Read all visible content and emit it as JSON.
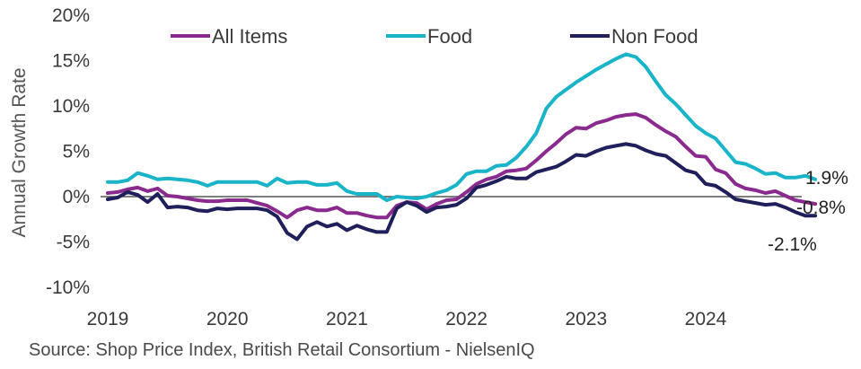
{
  "chart_data": {
    "type": "line",
    "ylabel": "Annual Growth Rate",
    "ylim": [
      -10,
      20
    ],
    "xlim": [
      2019.0,
      2024.75
    ],
    "y_ticks": [
      "-10%",
      "-5%",
      "0%",
      "5%",
      "10%",
      "15%",
      "20%"
    ],
    "y_tick_values": [
      -10,
      -5,
      0,
      5,
      10,
      15,
      20
    ],
    "x_ticks": [
      "2019",
      "2020",
      "2021",
      "2022",
      "2023",
      "2024"
    ],
    "x_tick_values": [
      2019,
      2020,
      2021,
      2022,
      2023,
      2024
    ],
    "legend_position": "top",
    "zero_line": true,
    "source": "Source: Shop Price Index, British Retail Consortium - NielsenIQ",
    "end_labels": [
      {
        "series": "Food",
        "text": "1.9%",
        "value": 1.9
      },
      {
        "series": "All Items",
        "text": "-0.8%",
        "value": -0.8
      },
      {
        "series": "Non Food",
        "text": "-2.1%",
        "value": -2.1
      }
    ],
    "series": [
      {
        "name": "All Items",
        "color": "#8b2a8e",
        "x_start": 2019.0,
        "x_step": 0.0833333,
        "values": [
          0.4,
          0.5,
          0.8,
          1.0,
          0.6,
          0.9,
          0.1,
          0.0,
          -0.2,
          -0.4,
          -0.5,
          -0.5,
          -0.4,
          -0.4,
          -0.4,
          -0.7,
          -1.0,
          -1.6,
          -2.3,
          -1.5,
          -1.2,
          -1.5,
          -1.5,
          -1.2,
          -1.8,
          -1.8,
          -2.1,
          -2.3,
          -2.3,
          -1.0,
          -0.6,
          -0.7,
          -1.4,
          -0.8,
          -0.4,
          -0.3,
          0.5,
          1.4,
          1.9,
          2.2,
          2.8,
          2.9,
          3.1,
          4.0,
          5.0,
          5.9,
          6.9,
          7.6,
          7.5,
          8.1,
          8.4,
          8.8,
          9.0,
          9.1,
          8.7,
          7.9,
          7.2,
          6.6,
          5.5,
          4.5,
          4.4,
          3.0,
          2.6,
          1.4,
          0.9,
          0.7,
          0.4,
          0.6,
          0.1,
          -0.4,
          -0.6,
          -0.8
        ]
      },
      {
        "name": "Food",
        "color": "#19b4c8",
        "x_start": 2019.0,
        "x_step": 0.0833333,
        "values": [
          1.6,
          1.6,
          1.8,
          2.6,
          2.3,
          1.9,
          2.0,
          1.9,
          1.8,
          1.6,
          1.2,
          1.6,
          1.6,
          1.6,
          1.6,
          1.6,
          1.2,
          2.0,
          1.5,
          1.6,
          1.6,
          1.3,
          1.3,
          1.5,
          0.6,
          0.3,
          0.3,
          0.3,
          -0.4,
          0.0,
          -0.1,
          -0.2,
          0.0,
          0.4,
          0.7,
          1.3,
          2.5,
          2.8,
          2.8,
          3.4,
          3.5,
          4.3,
          5.5,
          7.0,
          9.7,
          11.0,
          11.8,
          12.6,
          13.3,
          14.0,
          14.6,
          15.2,
          15.7,
          15.4,
          14.3,
          12.7,
          11.2,
          10.2,
          9.0,
          7.8,
          7.0,
          6.4,
          5.1,
          3.8,
          3.6,
          3.1,
          2.5,
          2.6,
          2.1,
          2.1,
          2.3,
          1.9
        ]
      },
      {
        "name": "Non Food",
        "color": "#1f1f5c",
        "x_start": 2019.0,
        "x_step": 0.0833333,
        "values": [
          -0.3,
          -0.1,
          0.5,
          0.2,
          -0.6,
          0.3,
          -1.2,
          -1.1,
          -1.2,
          -1.5,
          -1.6,
          -1.3,
          -1.4,
          -1.3,
          -1.3,
          -1.3,
          -1.5,
          -2.2,
          -4.0,
          -4.7,
          -3.3,
          -2.8,
          -3.3,
          -3.0,
          -3.7,
          -3.2,
          -3.6,
          -3.9,
          -3.9,
          -1.3,
          -0.6,
          -1.0,
          -1.7,
          -1.2,
          -1.1,
          -0.9,
          -0.2,
          1.0,
          1.3,
          1.7,
          2.2,
          2.0,
          2.0,
          2.7,
          3.0,
          3.3,
          3.9,
          4.6,
          4.5,
          5.0,
          5.4,
          5.6,
          5.8,
          5.6,
          5.1,
          4.7,
          4.5,
          3.7,
          2.9,
          2.6,
          1.4,
          1.2,
          0.5,
          -0.3,
          -0.5,
          -0.7,
          -0.9,
          -0.8,
          -1.2,
          -1.7,
          -2.1,
          -2.1
        ]
      }
    ]
  }
}
